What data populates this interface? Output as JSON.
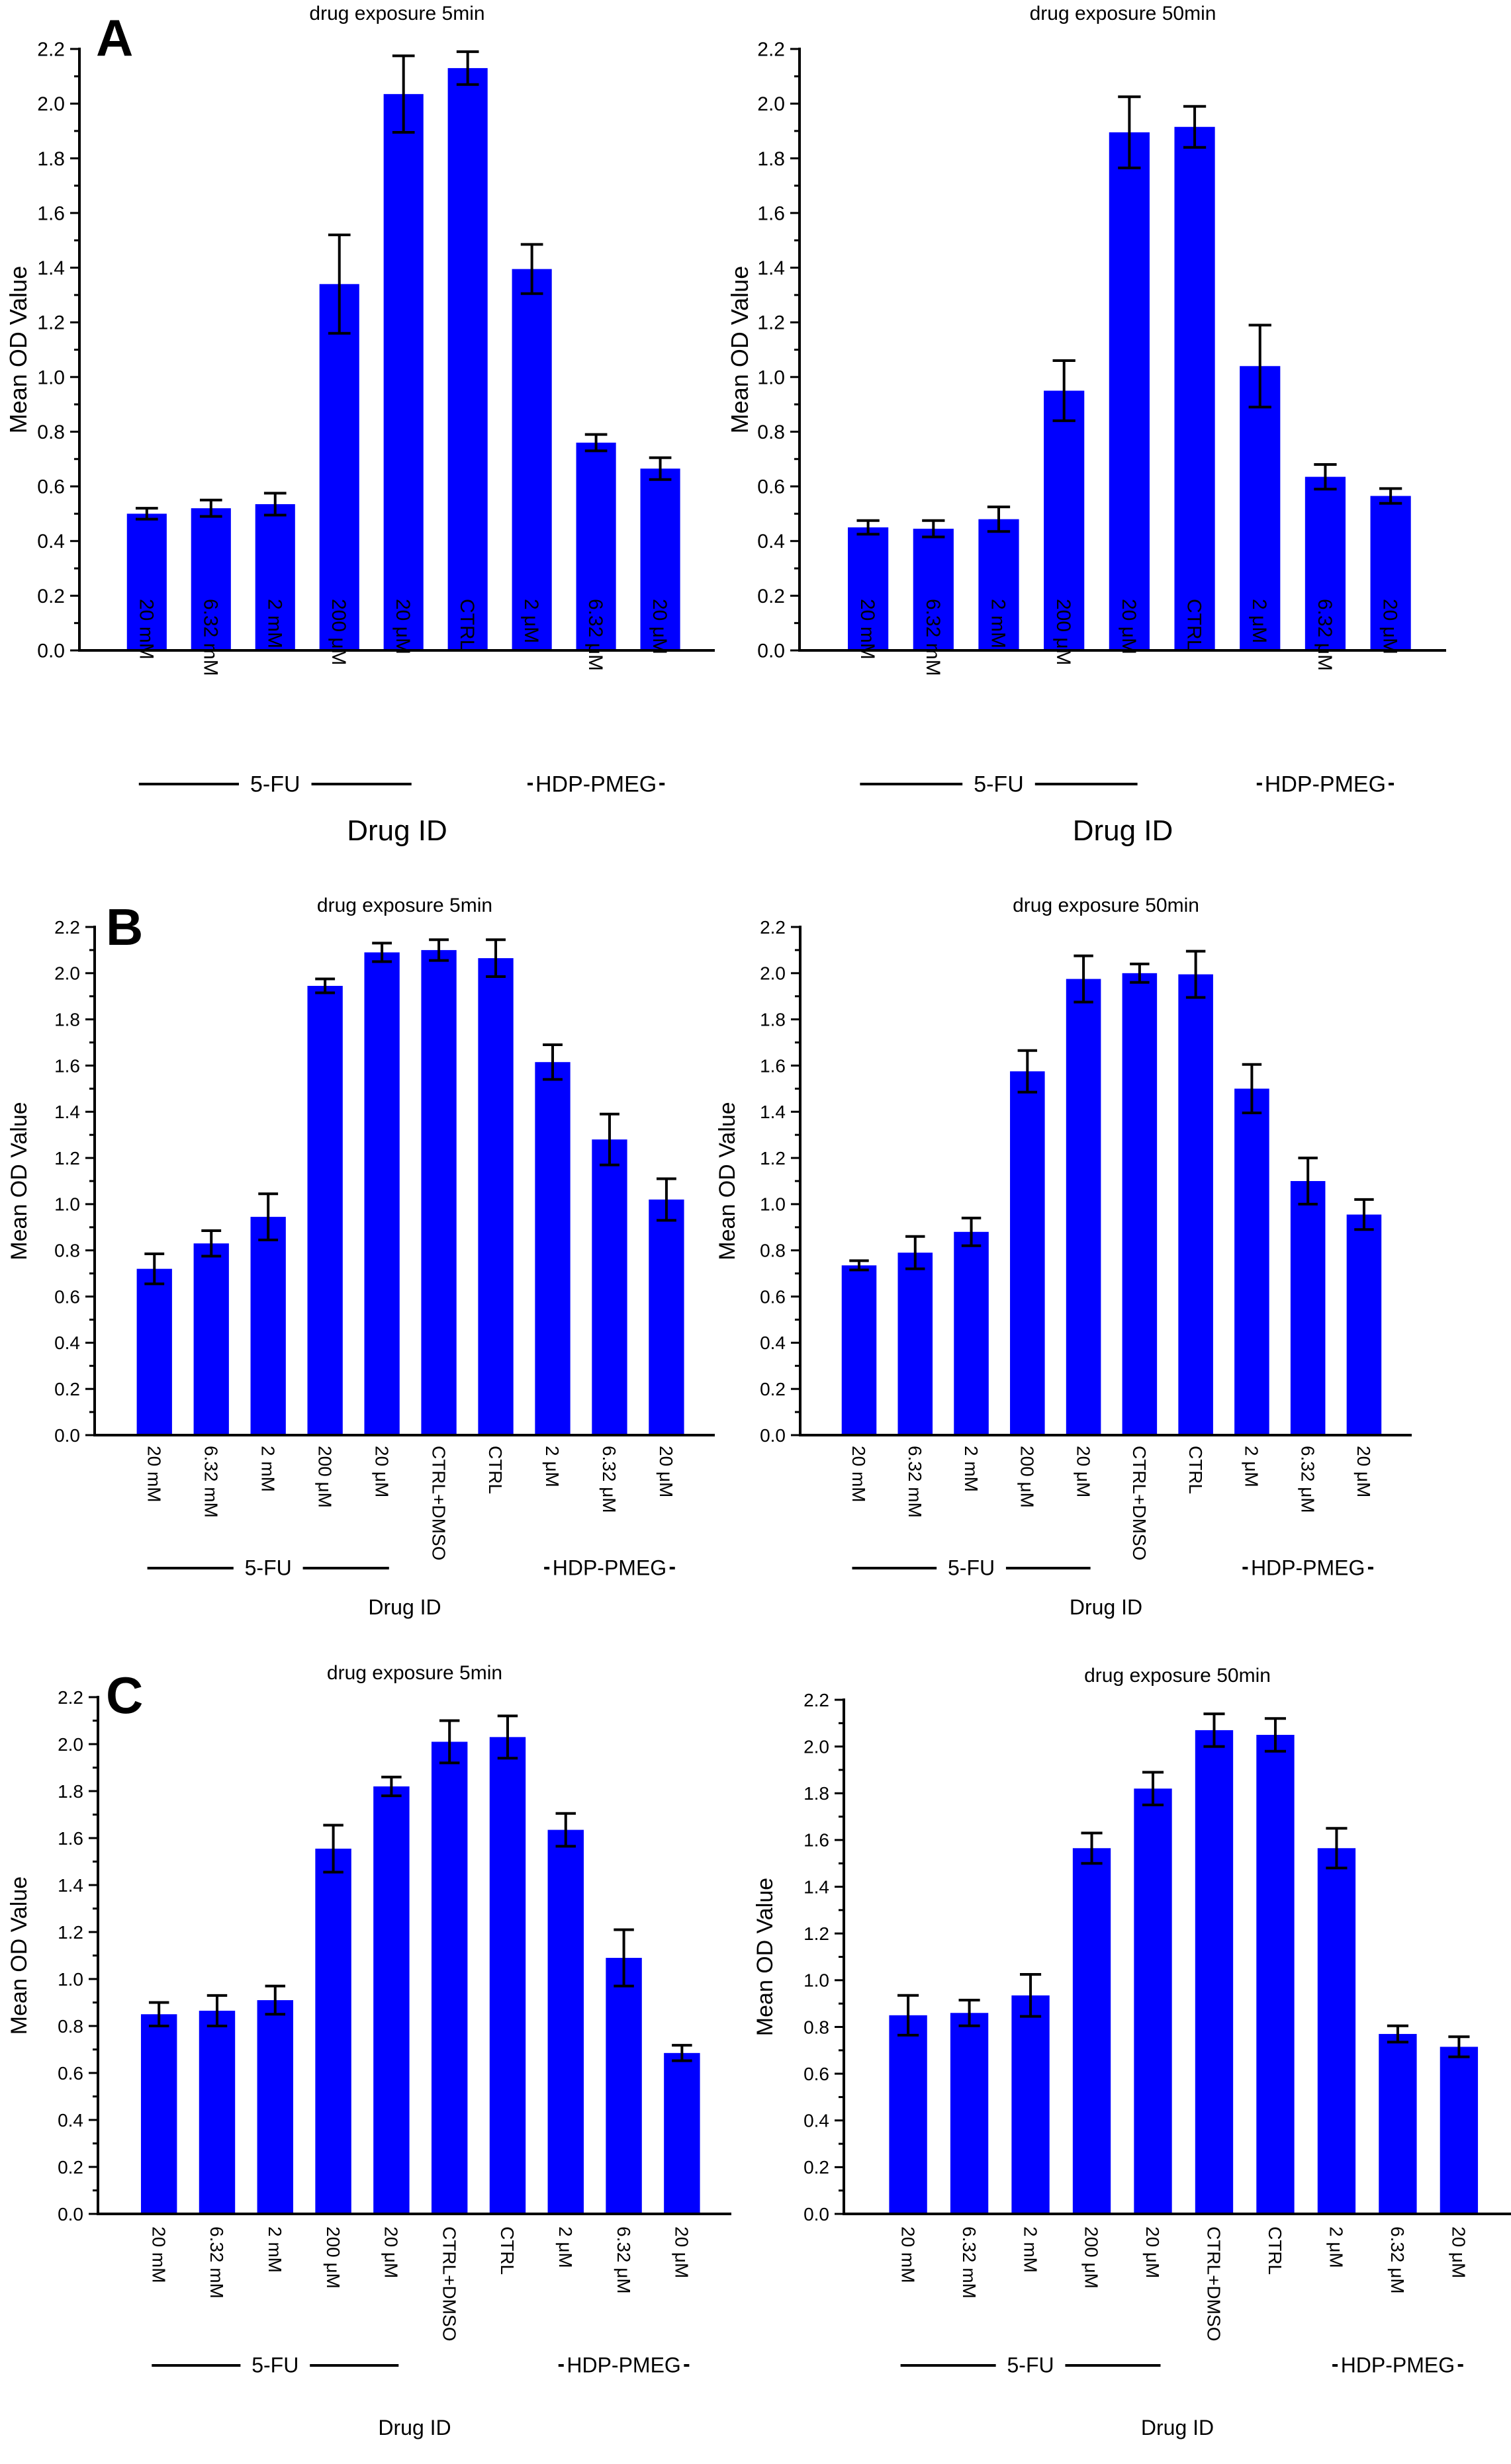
{
  "figure": {
    "panel_letters": [
      "A",
      "B",
      "C"
    ]
  },
  "chart_data": [
    {
      "type": "bar",
      "panel": "A",
      "title": "drug exposure 5min",
      "xlabel": "Drug ID",
      "ylabel": "Mean OD Value",
      "ylim": [
        0,
        2.2
      ],
      "yticks": [
        "0.0",
        "0.2",
        "0.4",
        "0.6",
        "0.8",
        "1.0",
        "1.2",
        "1.4",
        "1.6",
        "1.8",
        "2.0",
        "2.2"
      ],
      "categories": [
        "20 mM",
        "6.32 mM",
        "2 mM",
        "200 μM",
        "20 μM",
        "CTRL",
        "2 μM",
        "6.32 μM",
        "20 μM"
      ],
      "values": [
        0.5,
        0.52,
        0.535,
        1.34,
        2.035,
        2.13,
        1.395,
        0.76,
        0.665
      ],
      "errors": [
        0.02,
        0.03,
        0.04,
        0.18,
        0.14,
        0.06,
        0.09,
        0.03,
        0.04
      ],
      "bar_color": "#0000ff",
      "groups": [
        {
          "label": "5-FU",
          "from": 0,
          "to": 4
        },
        {
          "label": "HDP-PMEG",
          "from": 6,
          "to": 8
        }
      ],
      "grid": false
    },
    {
      "type": "bar",
      "panel": "A",
      "title": "drug exposure 50min",
      "xlabel": "Drug ID",
      "ylabel": "Mean OD Value",
      "ylim": [
        0,
        2.2
      ],
      "yticks": [
        "0.0",
        "0.2",
        "0.4",
        "0.6",
        "0.8",
        "1.0",
        "1.2",
        "1.4",
        "1.6",
        "1.8",
        "2.0",
        "2.2"
      ],
      "categories": [
        "20 mM",
        "6.32 mM",
        "2 mM",
        "200 μM",
        "20 μM",
        "CTRL",
        "2 μM",
        "6.32 μM",
        "20 μM"
      ],
      "values": [
        0.45,
        0.445,
        0.48,
        0.95,
        1.895,
        1.915,
        1.04,
        0.635,
        0.565
      ],
      "errors": [
        0.025,
        0.03,
        0.045,
        0.11,
        0.13,
        0.075,
        0.15,
        0.045,
        0.027
      ],
      "bar_color": "#0000ff",
      "groups": [
        {
          "label": "5-FU",
          "from": 0,
          "to": 4
        },
        {
          "label": "HDP-PMEG",
          "from": 6,
          "to": 8
        }
      ],
      "grid": false
    },
    {
      "type": "bar",
      "panel": "B",
      "title": "drug exposure 5min",
      "xlabel": "Drug ID",
      "ylabel": "Mean OD Value",
      "ylim": [
        0,
        2.2
      ],
      "yticks": [
        "0.0",
        "0.2",
        "0.4",
        "0.6",
        "0.8",
        "1.0",
        "1.2",
        "1.4",
        "1.6",
        "1.8",
        "2.0",
        "2.2"
      ],
      "categories": [
        "20 mM",
        "6.32 mM",
        "2 mM",
        "200 μM",
        "20 μM",
        "CTRL+DMSO",
        "CTRL",
        "2 μM",
        "6.32 μM",
        "20 μM"
      ],
      "values": [
        0.72,
        0.83,
        0.945,
        1.945,
        2.09,
        2.1,
        2.065,
        1.615,
        1.28,
        1.02
      ],
      "errors": [
        0.065,
        0.055,
        0.1,
        0.03,
        0.04,
        0.045,
        0.08,
        0.075,
        0.11,
        0.09
      ],
      "bar_color": "#0000ff",
      "groups": [
        {
          "label": "5-FU",
          "from": 0,
          "to": 4
        },
        {
          "label": "HDP-PMEG",
          "from": 7,
          "to": 9
        }
      ],
      "grid": false
    },
    {
      "type": "bar",
      "panel": "B",
      "title": "drug exposure 50min",
      "xlabel": "Drug ID",
      "ylabel": "Mean OD Value",
      "ylim": [
        0,
        2.2
      ],
      "yticks": [
        "0.0",
        "0.2",
        "0.4",
        "0.6",
        "0.8",
        "1.0",
        "1.2",
        "1.4",
        "1.6",
        "1.8",
        "2.0",
        "2.2"
      ],
      "categories": [
        "20 mM",
        "6.32 mM",
        "2 mM",
        "200 μM",
        "20 μM",
        "CTRL+DMSO",
        "CTRL",
        "2 μM",
        "6.32 μM",
        "20 μM"
      ],
      "values": [
        0.735,
        0.79,
        0.88,
        1.575,
        1.975,
        2.0,
        1.995,
        1.5,
        1.1,
        0.955
      ],
      "errors": [
        0.02,
        0.07,
        0.06,
        0.09,
        0.1,
        0.04,
        0.1,
        0.105,
        0.1,
        0.065
      ],
      "bar_color": "#0000ff",
      "groups": [
        {
          "label": "5-FU",
          "from": 0,
          "to": 4
        },
        {
          "label": "HDP-PMEG",
          "from": 7,
          "to": 9
        }
      ],
      "grid": false
    },
    {
      "type": "bar",
      "panel": "C",
      "title": "drug exposure 5min",
      "xlabel": "Drug ID",
      "ylabel": "Mean OD Value",
      "ylim": [
        0,
        2.2
      ],
      "yticks": [
        "0.0",
        "0.2",
        "0.4",
        "0.6",
        "0.8",
        "1.0",
        "1.2",
        "1.4",
        "1.6",
        "1.8",
        "2.0",
        "2.2"
      ],
      "categories": [
        "20 mM",
        "6.32 mM",
        "2 mM",
        "200 μM",
        "20 μM",
        "CTRL+DMSO",
        "CTRL",
        "2 μM",
        "6.32 μM",
        "20 μM"
      ],
      "values": [
        0.85,
        0.865,
        0.91,
        1.555,
        1.82,
        2.01,
        2.03,
        1.635,
        1.09,
        0.685
      ],
      "errors": [
        0.05,
        0.065,
        0.06,
        0.1,
        0.04,
        0.09,
        0.09,
        0.07,
        0.12,
        0.033
      ],
      "bar_color": "#0000ff",
      "groups": [
        {
          "label": "5-FU",
          "from": 0,
          "to": 4
        },
        {
          "label": "HDP-PMEG",
          "from": 7,
          "to": 9
        }
      ],
      "grid": false
    },
    {
      "type": "bar",
      "panel": "C",
      "title": "drug exposure 50min",
      "xlabel": "Drug ID",
      "ylabel": "Mean OD Value",
      "ylim": [
        0,
        2.2
      ],
      "yticks": [
        "0.0",
        "0.2",
        "0.4",
        "0.6",
        "0.8",
        "1.0",
        "1.2",
        "1.4",
        "1.6",
        "1.8",
        "2.0",
        "2.2"
      ],
      "categories": [
        "20 mM",
        "6.32 mM",
        "2 mM",
        "200 μM",
        "20 μM",
        "CTRL+DMSO",
        "CTRL",
        "2 μM",
        "6.32 μM",
        "20 μM"
      ],
      "values": [
        0.85,
        0.86,
        0.935,
        1.565,
        1.82,
        2.07,
        2.05,
        1.565,
        0.77,
        0.715
      ],
      "errors": [
        0.085,
        0.055,
        0.09,
        0.065,
        0.07,
        0.07,
        0.07,
        0.085,
        0.035,
        0.043
      ],
      "bar_color": "#0000ff",
      "groups": [
        {
          "label": "5-FU",
          "from": 0,
          "to": 4
        },
        {
          "label": "HDP-PMEG",
          "from": 7,
          "to": 9
        }
      ],
      "grid": false
    }
  ]
}
